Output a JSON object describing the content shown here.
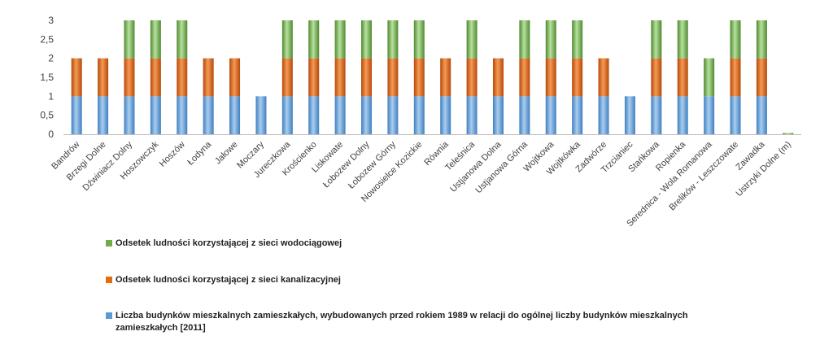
{
  "chart_data": {
    "type": "bar",
    "stacked": true,
    "categories": [
      "Bandrów",
      "Brzegi Dolne",
      "Dźwiniacz Dolny",
      "Hoszowczyk",
      "Hoszów",
      "Łodyna",
      "Jałowe",
      "Moczary",
      "Jureczkowa",
      "Krościenko",
      "Liskowate",
      "Łobozew Dolny",
      "Łobozew Górny",
      "Nowosielce Kozickie",
      "Równia",
      "Teleśnica",
      "Ustjanowa Dolna",
      "Ustjanowa Górna",
      "Wojtkowa",
      "Wojtkówka",
      "Zadwórze",
      "Trzcianiec",
      "Stańkowa",
      "Ropienka",
      "Serednica - Wola Romanowa",
      "Brelików - Leszczowate",
      "Zawadka",
      "Ustrzyki Dolne (m)"
    ],
    "series": [
      {
        "name": "Liczba budynków mieszkalnych zamieszkałych, wybudowanych przed rokiem 1989 w relacji do ogólnej liczby budynków mieszkalnych zamieszkałych [2011]",
        "color": "#5b9bd5",
        "values": [
          1,
          1,
          1,
          1,
          1,
          1,
          1,
          1,
          1,
          1,
          1,
          1,
          1,
          1,
          1,
          1,
          1,
          1,
          1,
          1,
          1,
          1,
          1,
          1,
          1,
          1,
          1,
          0
        ]
      },
      {
        "name": "Odsetek ludności korzystającej z sieci kanalizacyjnej",
        "color": "#e46c0a",
        "values": [
          1,
          1,
          1,
          1,
          1,
          1,
          1,
          0,
          1,
          1,
          1,
          1,
          1,
          1,
          1,
          1,
          1,
          1,
          1,
          1,
          1,
          0,
          1,
          1,
          0,
          1,
          1,
          0
        ]
      },
      {
        "name": "Odsetek ludności korzystającej z sieci wodociągowej",
        "color": "#70ad47",
        "values": [
          0,
          0,
          1,
          1,
          1,
          0,
          0,
          0,
          1,
          1,
          1,
          1,
          1,
          1,
          0,
          1,
          0,
          1,
          1,
          1,
          0,
          0,
          1,
          1,
          1,
          1,
          1,
          0.02
        ]
      }
    ],
    "yticks": [
      "0",
      "0,5",
      "1",
      "1,5",
      "2",
      "2,5",
      "3"
    ],
    "ylim": [
      0,
      3
    ],
    "grid": false,
    "legend_position": "bottom"
  },
  "legend": [
    {
      "label": "Odsetek ludności korzystającej z sieci wodociągowej",
      "color": "#70ad47"
    },
    {
      "label": "Odsetek ludności korzystającej z sieci kanalizacyjnej",
      "color": "#e46c0a"
    },
    {
      "label": "Liczba budynków mieszkalnych zamieszkałych, wybudowanych przed rokiem 1989 w relacji do ogólnej liczby budynków mieszkalnych zamieszkałych [2011]",
      "color": "#5b9bd5"
    }
  ]
}
